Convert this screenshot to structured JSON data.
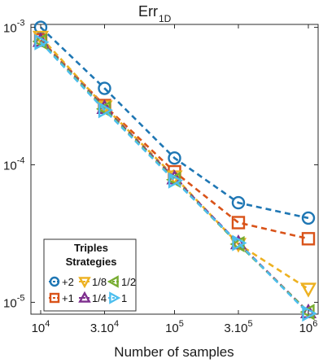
{
  "chart_data": {
    "type": "line",
    "title_main": "Err",
    "title_sub": "1D",
    "xlabel": "Number of samples",
    "xscale": "log",
    "yscale": "log",
    "xlim": [
      10000,
      1000000
    ],
    "ylim": [
      8.2e-06,
      0.00105
    ],
    "x": [
      10000,
      30000,
      100000,
      300000,
      1000000
    ],
    "xticks": [
      {
        "value": 10000,
        "base": "10",
        "exp": "4"
      },
      {
        "value": 30000,
        "base": "3.10",
        "exp": "4"
      },
      {
        "value": 100000,
        "base": "10",
        "exp": "5"
      },
      {
        "value": 300000,
        "base": "3.10",
        "exp": "5"
      },
      {
        "value": 1000000,
        "base": "10",
        "exp": "6"
      }
    ],
    "yticks": [
      {
        "value": 0.001,
        "base": "10",
        "exp": "-3"
      },
      {
        "value": 0.0001,
        "base": "10",
        "exp": "-4"
      },
      {
        "value": 1e-05,
        "base": "10",
        "exp": "-5"
      }
    ],
    "grid": false,
    "legend": {
      "title_line1": "Triples",
      "title_line2": "Strategies",
      "placement": "bottom-left"
    },
    "series": [
      {
        "name": "+2",
        "color": "#1f77b4",
        "marker": "circle",
        "values": [
          0.001,
          0.00036,
          0.000112,
          5.3e-05,
          4.1e-05
        ]
      },
      {
        "name": "+1",
        "color": "#d95319",
        "marker": "square",
        "values": [
          0.00081,
          0.00027,
          8.9e-05,
          3.8e-05,
          2.9e-05
        ]
      },
      {
        "name": "1/8",
        "color": "#edb120",
        "marker": "triangle-down",
        "values": [
          0.00085,
          0.000265,
          8.2e-05,
          2.65e-05,
          1.25e-05
        ]
      },
      {
        "name": "1/4",
        "color": "#7e2f8e",
        "marker": "triangle-up",
        "values": [
          0.0008,
          0.00026,
          8e-05,
          2.7e-05,
          8.5e-06
        ]
      },
      {
        "name": "1/2",
        "color": "#77ac30",
        "marker": "triangle-left",
        "values": [
          0.00079,
          0.000255,
          7.8e-05,
          2.65e-05,
          8.5e-06
        ]
      },
      {
        "name": "1",
        "color": "#4dbeee",
        "marker": "triangle-right",
        "values": [
          0.00078,
          0.00025,
          7.7e-05,
          2.7e-05,
          8.3e-06
        ]
      }
    ]
  }
}
